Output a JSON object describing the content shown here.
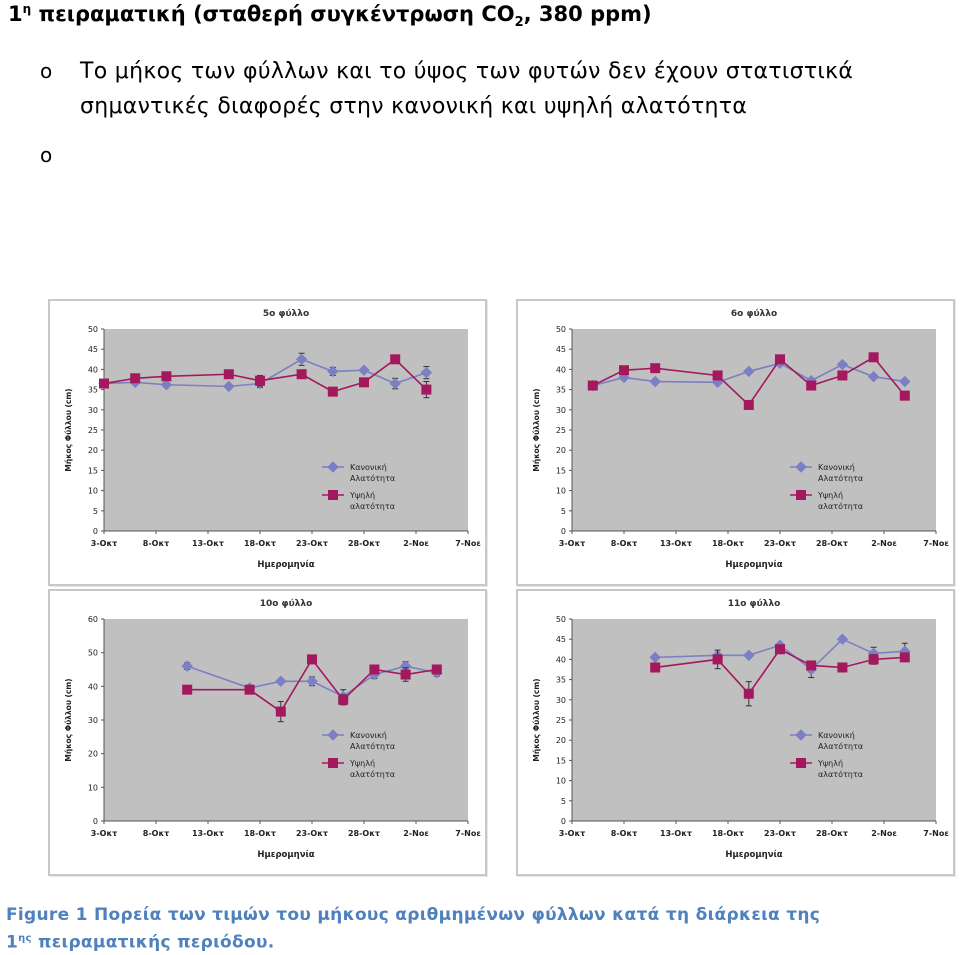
{
  "heading": {
    "num": "1",
    "sup": "η",
    "text": " πειραματική (σταθερή συγκέντρωση CO",
    "sub": "2",
    "tail": ", 380 ppm)"
  },
  "bullets": [
    {
      "mark": "o",
      "text": "Το μήκος των φύλλων και το ύψος των φυτών δεν έχουν στατιστικά σημαντικές διαφορές στην κανονική και υψηλή αλατότητα"
    },
    {
      "mark": "o",
      "text": ""
    }
  ],
  "colors": {
    "normal": "#7b7fc4",
    "high": "#a4185d",
    "plot_bg": "#c0c0c0"
  },
  "chart_data": [
    {
      "type": "line",
      "title": "5ο φύλλο",
      "xlabel": "Ημερομηνία",
      "ylabel": "Μήκος Φύλλου (cm)",
      "x_ticks": [
        "3-Οκτ",
        "8-Οκτ",
        "13-Οκτ",
        "18-Οκτ",
        "23-Οκτ",
        "28-Οκτ",
        "2-Νοε",
        "7-Νοε"
      ],
      "ylim": [
        0,
        50
      ],
      "y_step": 5,
      "x_range_days": [
        0,
        35
      ],
      "legend": "right",
      "series": [
        {
          "name": "Κανονική Αλατότητα",
          "marker": "diamond",
          "x": [
            0,
            3,
            6,
            12,
            15,
            19,
            22,
            25,
            28,
            31
          ],
          "y": [
            36.5,
            36.8,
            36.2,
            35.8,
            36.5,
            42.5,
            39.5,
            39.8,
            36.5,
            39.2
          ],
          "err": [
            0,
            0,
            0,
            0,
            1.0,
            1.5,
            1.0,
            0.5,
            1.3,
            1.5
          ]
        },
        {
          "name": "Υψηλή αλατότητα",
          "marker": "square",
          "x": [
            0,
            3,
            6,
            12,
            15,
            19,
            22,
            25,
            28,
            31
          ],
          "y": [
            36.5,
            37.8,
            38.3,
            38.8,
            37.2,
            38.8,
            34.5,
            36.8,
            42.5,
            35.0
          ],
          "err": [
            0,
            0,
            0,
            0,
            1.3,
            0,
            0,
            0.8,
            0,
            2.0
          ]
        }
      ]
    },
    {
      "type": "line",
      "title": "6ο φύλλο",
      "xlabel": "Ημερομηνία",
      "ylabel": "Μήκος Φύλλου (cm)",
      "x_ticks": [
        "3-Οκτ",
        "8-Οκτ",
        "13-Οκτ",
        "18-Οκτ",
        "23-Οκτ",
        "28-Οκτ",
        "2-Νοε",
        "7-Νοε"
      ],
      "ylim": [
        0,
        50
      ],
      "y_step": 5,
      "x_range_days": [
        0,
        35
      ],
      "legend": "right",
      "series": [
        {
          "name": "Κανονική Αλατότητα",
          "marker": "diamond",
          "x": [
            2,
            5,
            8,
            14,
            17,
            20,
            23,
            26,
            29,
            32
          ],
          "y": [
            36.0,
            38.0,
            37.0,
            36.8,
            39.5,
            41.5,
            37.2,
            41.2,
            38.2,
            37.0
          ],
          "err": [
            0,
            0,
            0,
            0,
            0,
            0,
            0,
            0,
            0,
            0
          ]
        },
        {
          "name": "Υψηλή αλατότητα",
          "marker": "square",
          "x": [
            2,
            5,
            8,
            14,
            17,
            20,
            23,
            26,
            29,
            32
          ],
          "y": [
            36.0,
            39.8,
            40.3,
            38.5,
            31.2,
            42.5,
            36.0,
            38.5,
            43.0,
            33.5
          ],
          "err": [
            0,
            0,
            0,
            0,
            0,
            0,
            0,
            0,
            0,
            0
          ]
        }
      ]
    },
    {
      "type": "line",
      "title": "10ο φύλλο",
      "xlabel": "Ημερομηνία",
      "ylabel": "Μήκος Φύλλου (cm)",
      "x_ticks": [
        "3-Οκτ",
        "8-Οκτ",
        "13-Οκτ",
        "18-Οκτ",
        "23-Οκτ",
        "28-Οκτ",
        "2-Νοε",
        "7-Νοε"
      ],
      "ylim": [
        0,
        60
      ],
      "y_step": 10,
      "x_range_days": [
        0,
        35
      ],
      "legend": "right",
      "series": [
        {
          "name": "Κανονική Αλατότητα",
          "marker": "diamond",
          "x": [
            8,
            14,
            17,
            20,
            23,
            26,
            29,
            32
          ],
          "y": [
            46.0,
            39.5,
            41.5,
            41.5,
            37.0,
            43.5,
            46.0,
            44.0
          ],
          "err": [
            1,
            0,
            0,
            1.3,
            2,
            1.2,
            1.3,
            1
          ]
        },
        {
          "name": "Υψηλή αλατότητα",
          "marker": "square",
          "x": [
            8,
            14,
            17,
            20,
            23,
            26,
            29,
            32
          ],
          "y": [
            39.0,
            39.0,
            32.5,
            48.0,
            36.0,
            45.0,
            43.5,
            45.0
          ],
          "err": [
            0,
            1.2,
            3.0,
            0,
            1.5,
            0,
            2.0,
            0
          ]
        }
      ]
    },
    {
      "type": "line",
      "title": "11ο φύλλο",
      "xlabel": "Ημερομηνία",
      "ylabel": "Μήκος Φύλλου (cm)",
      "x_ticks": [
        "3-Οκτ",
        "8-Οκτ",
        "13-Οκτ",
        "18-Οκτ",
        "23-Οκτ",
        "28-Οκτ",
        "2-Νοε",
        "7-Νοε"
      ],
      "ylim": [
        0,
        50
      ],
      "y_step": 5,
      "x_range_days": [
        0,
        35
      ],
      "legend": "right",
      "series": [
        {
          "name": "Κανονική Αλατότητα",
          "marker": "diamond",
          "x": [
            8,
            14,
            17,
            20,
            23,
            26,
            29,
            32
          ],
          "y": [
            40.5,
            41.0,
            41.0,
            43.5,
            37.5,
            45.0,
            41.5,
            42.0
          ],
          "err": [
            0,
            0,
            0,
            0,
            2.0,
            0,
            1.5,
            2.0
          ]
        },
        {
          "name": "Υψηλή αλατότητα",
          "marker": "square",
          "x": [
            8,
            14,
            17,
            20,
            23,
            26,
            29,
            32
          ],
          "y": [
            38.0,
            40.0,
            31.5,
            42.5,
            38.5,
            38.0,
            40.0,
            40.5
          ],
          "err": [
            0,
            2.3,
            3.0,
            1.0,
            1.0,
            1.0,
            1.2,
            0
          ]
        }
      ]
    }
  ],
  "caption": {
    "line1": "Figure 1 Πορεία των τιμών του μήκους αριθμημένων φύλλων κατά τη διάρκεια της",
    "num": "1",
    "sup": "ης",
    "line2": " πειραματικής περιόδου."
  }
}
